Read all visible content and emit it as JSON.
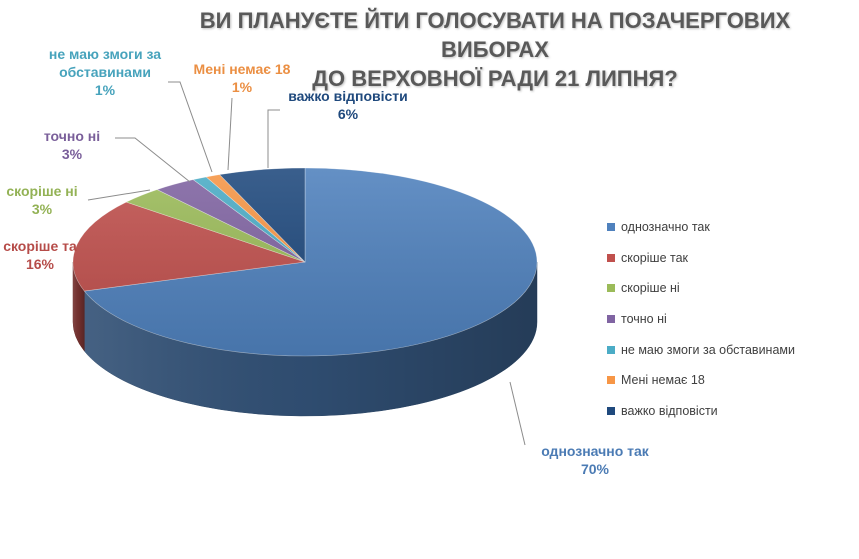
{
  "chart_data": {
    "type": "pie",
    "title": [
      "ВИ ПЛАНУЄТЕ ЙТИ ГОЛОСУВАТИ  НА ПОЗАЧЕРГОВИХ ВИБОРАХ",
      "ДО ВЕРХОВНОЇ РАДИ 21 ЛИПНЯ?"
    ],
    "legend_position": "right",
    "slices": [
      {
        "name": "однозначно так",
        "value": 70,
        "value_label": "70%",
        "label_lines": [
          "однозначно так"
        ],
        "color": "#4F81BD"
      },
      {
        "name": "скоріше так",
        "value": 16,
        "value_label": "16%",
        "label_lines": [
          "скоріше та"
        ],
        "color": "#C0504D"
      },
      {
        "name": "скоріше ні",
        "value": 3,
        "value_label": "3%",
        "label_lines": [
          "скоріше ні"
        ],
        "color": "#9BBB59"
      },
      {
        "name": "точно ні",
        "value": 3,
        "value_label": "3%",
        "label_lines": [
          "точно ні"
        ],
        "color": "#8064A2"
      },
      {
        "name": "не маю змоги за обставинами",
        "value": 1,
        "value_label": "1%",
        "label_lines": [
          "не маю змоги за",
          "обставинами"
        ],
        "color": "#4BACC6"
      },
      {
        "name": "Мені немає 18",
        "value": 1,
        "value_label": "1%",
        "label_lines": [
          "Мені немає 18"
        ],
        "color": "#F79646"
      },
      {
        "name": "важко відповісти",
        "value": 6,
        "value_label": "6%",
        "label_lines": [
          "важко відповісти"
        ],
        "color": "#1F497D"
      }
    ]
  }
}
